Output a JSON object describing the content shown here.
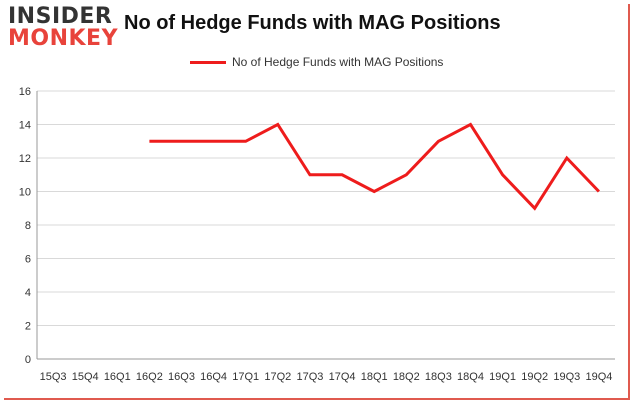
{
  "logo": {
    "line1": "INSIDER",
    "line2": "MONKEY"
  },
  "colors": {
    "series": "#ee1c1c",
    "grid": "#d9d9d9",
    "axis": "#999999",
    "logo_accent": "#e8433b"
  },
  "chart_data": {
    "type": "line",
    "title": "No of Hedge Funds with MAG Positions",
    "xlabel": "",
    "ylabel": "",
    "ylim": [
      0,
      16
    ],
    "yticks": [
      "0",
      "2",
      "4",
      "6",
      "8",
      "10",
      "12",
      "14",
      "16"
    ],
    "grid": true,
    "legend_position": "top-center",
    "categories": [
      "15Q3",
      "15Q4",
      "16Q1",
      "16Q2",
      "16Q3",
      "16Q4",
      "17Q1",
      "17Q2",
      "17Q3",
      "17Q4",
      "18Q1",
      "18Q2",
      "18Q3",
      "18Q4",
      "19Q1",
      "19Q2",
      "19Q3",
      "19Q4"
    ],
    "series": [
      {
        "name": "No of Hedge Funds with MAG Positions",
        "values": [
          null,
          null,
          null,
          13,
          13,
          13,
          13,
          14,
          11,
          11,
          10,
          11,
          13,
          14,
          11,
          9,
          12,
          10
        ]
      }
    ]
  }
}
